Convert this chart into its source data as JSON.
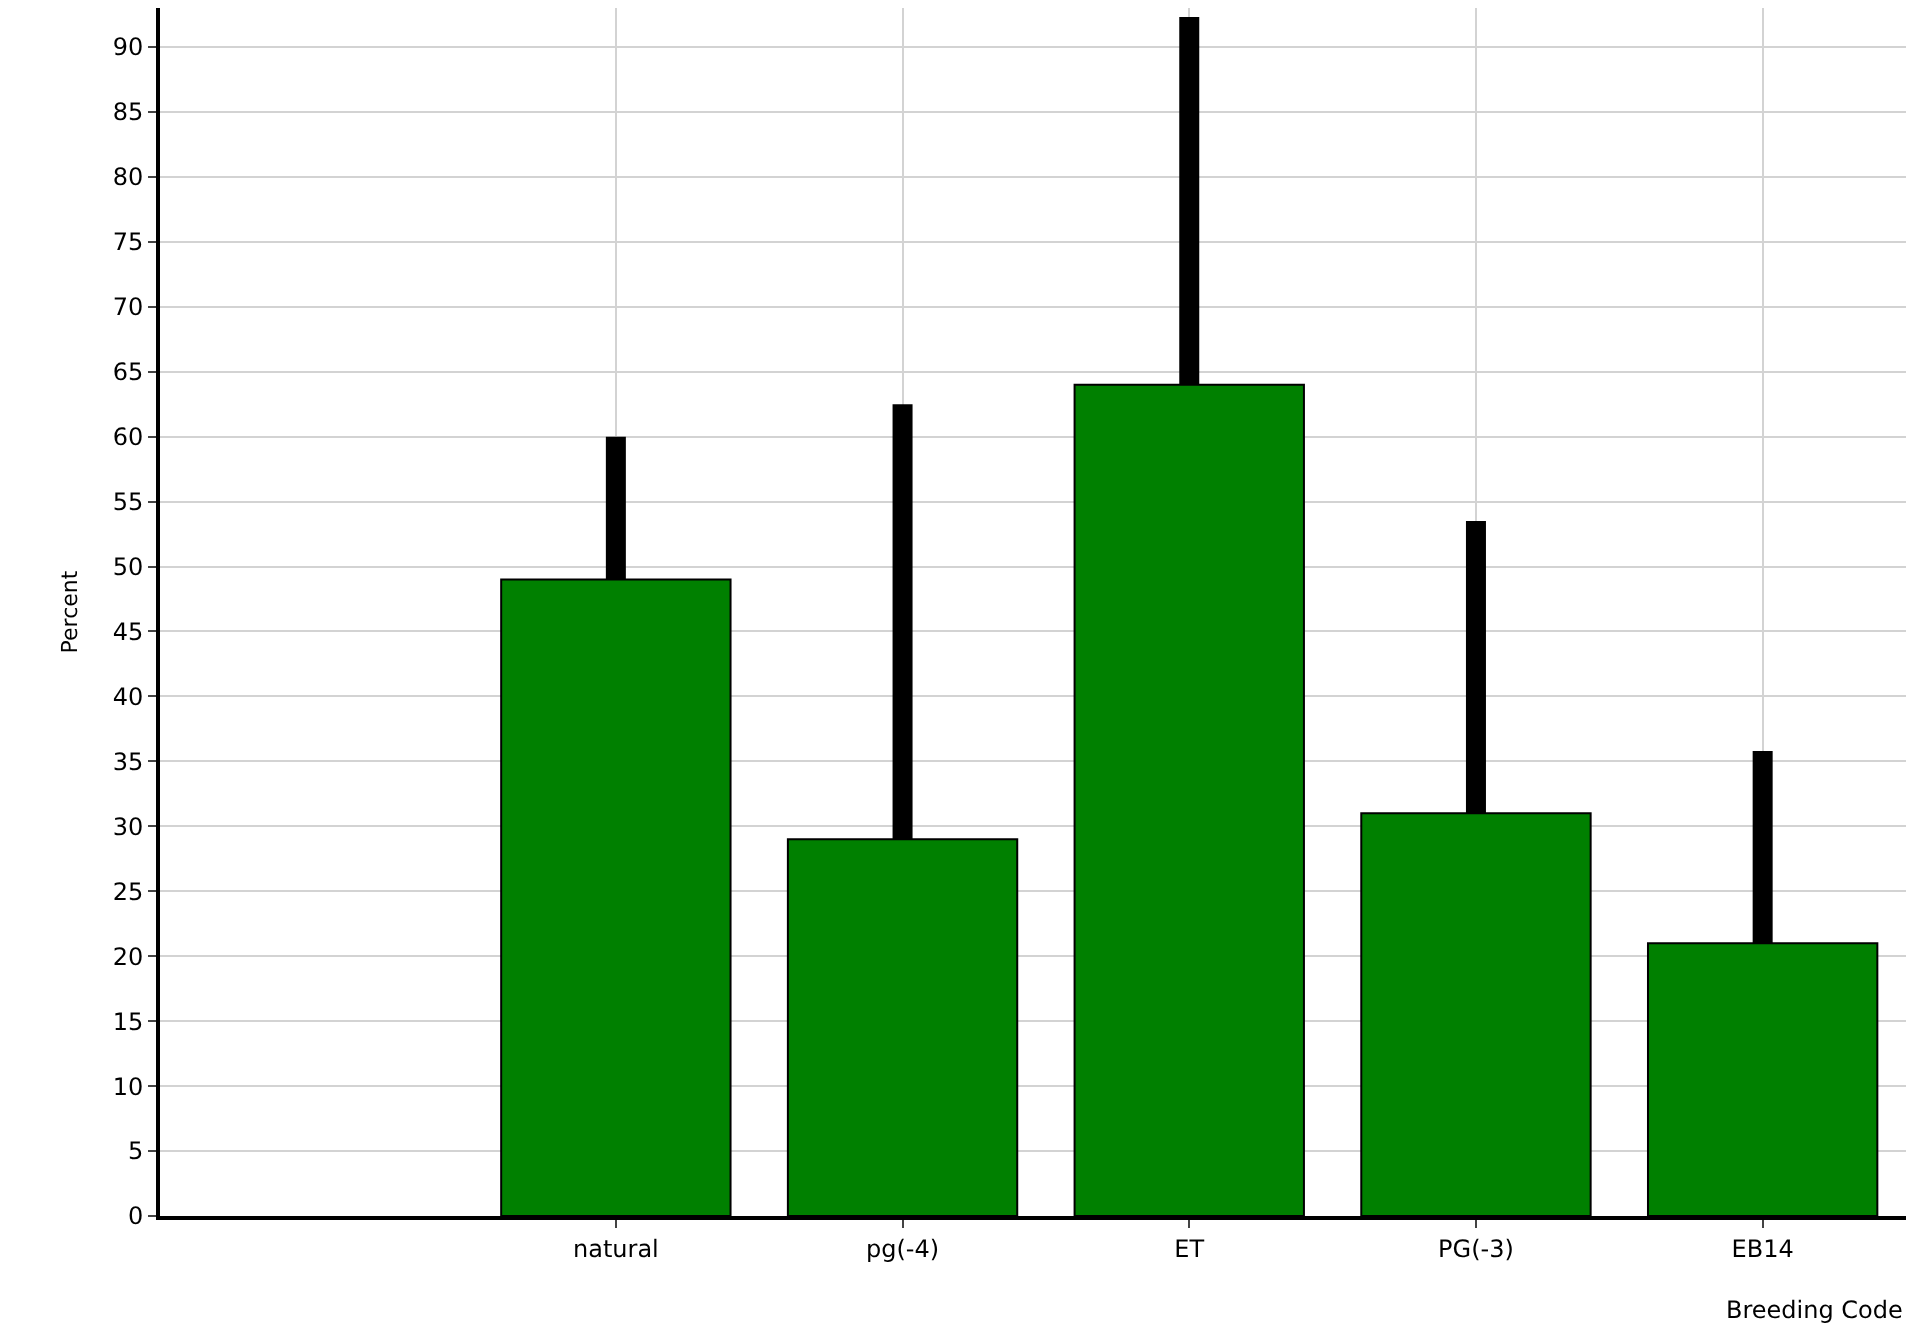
{
  "chart_data": {
    "type": "bar",
    "xlabel": "Breeding Code",
    "ylabel": "Percent",
    "categories": [
      null,
      "natural",
      "pg(-4)",
      "ET",
      "PG(-3)",
      "EB14"
    ],
    "values": [
      null,
      49,
      29,
      64,
      31,
      21
    ],
    "errors": [
      null,
      [
        49,
        60
      ],
      [
        29,
        62.5
      ],
      [
        64,
        92.3
      ],
      [
        31,
        53.5
      ],
      [
        21,
        35.8
      ]
    ],
    "color": "#008000",
    "ylim": [
      0,
      93
    ],
    "yticks": [
      0,
      5,
      10,
      15,
      20,
      25,
      30,
      35,
      40,
      45,
      50,
      55,
      60,
      65,
      70,
      75,
      80,
      85,
      90
    ],
    "grid": true,
    "legend": false
  }
}
